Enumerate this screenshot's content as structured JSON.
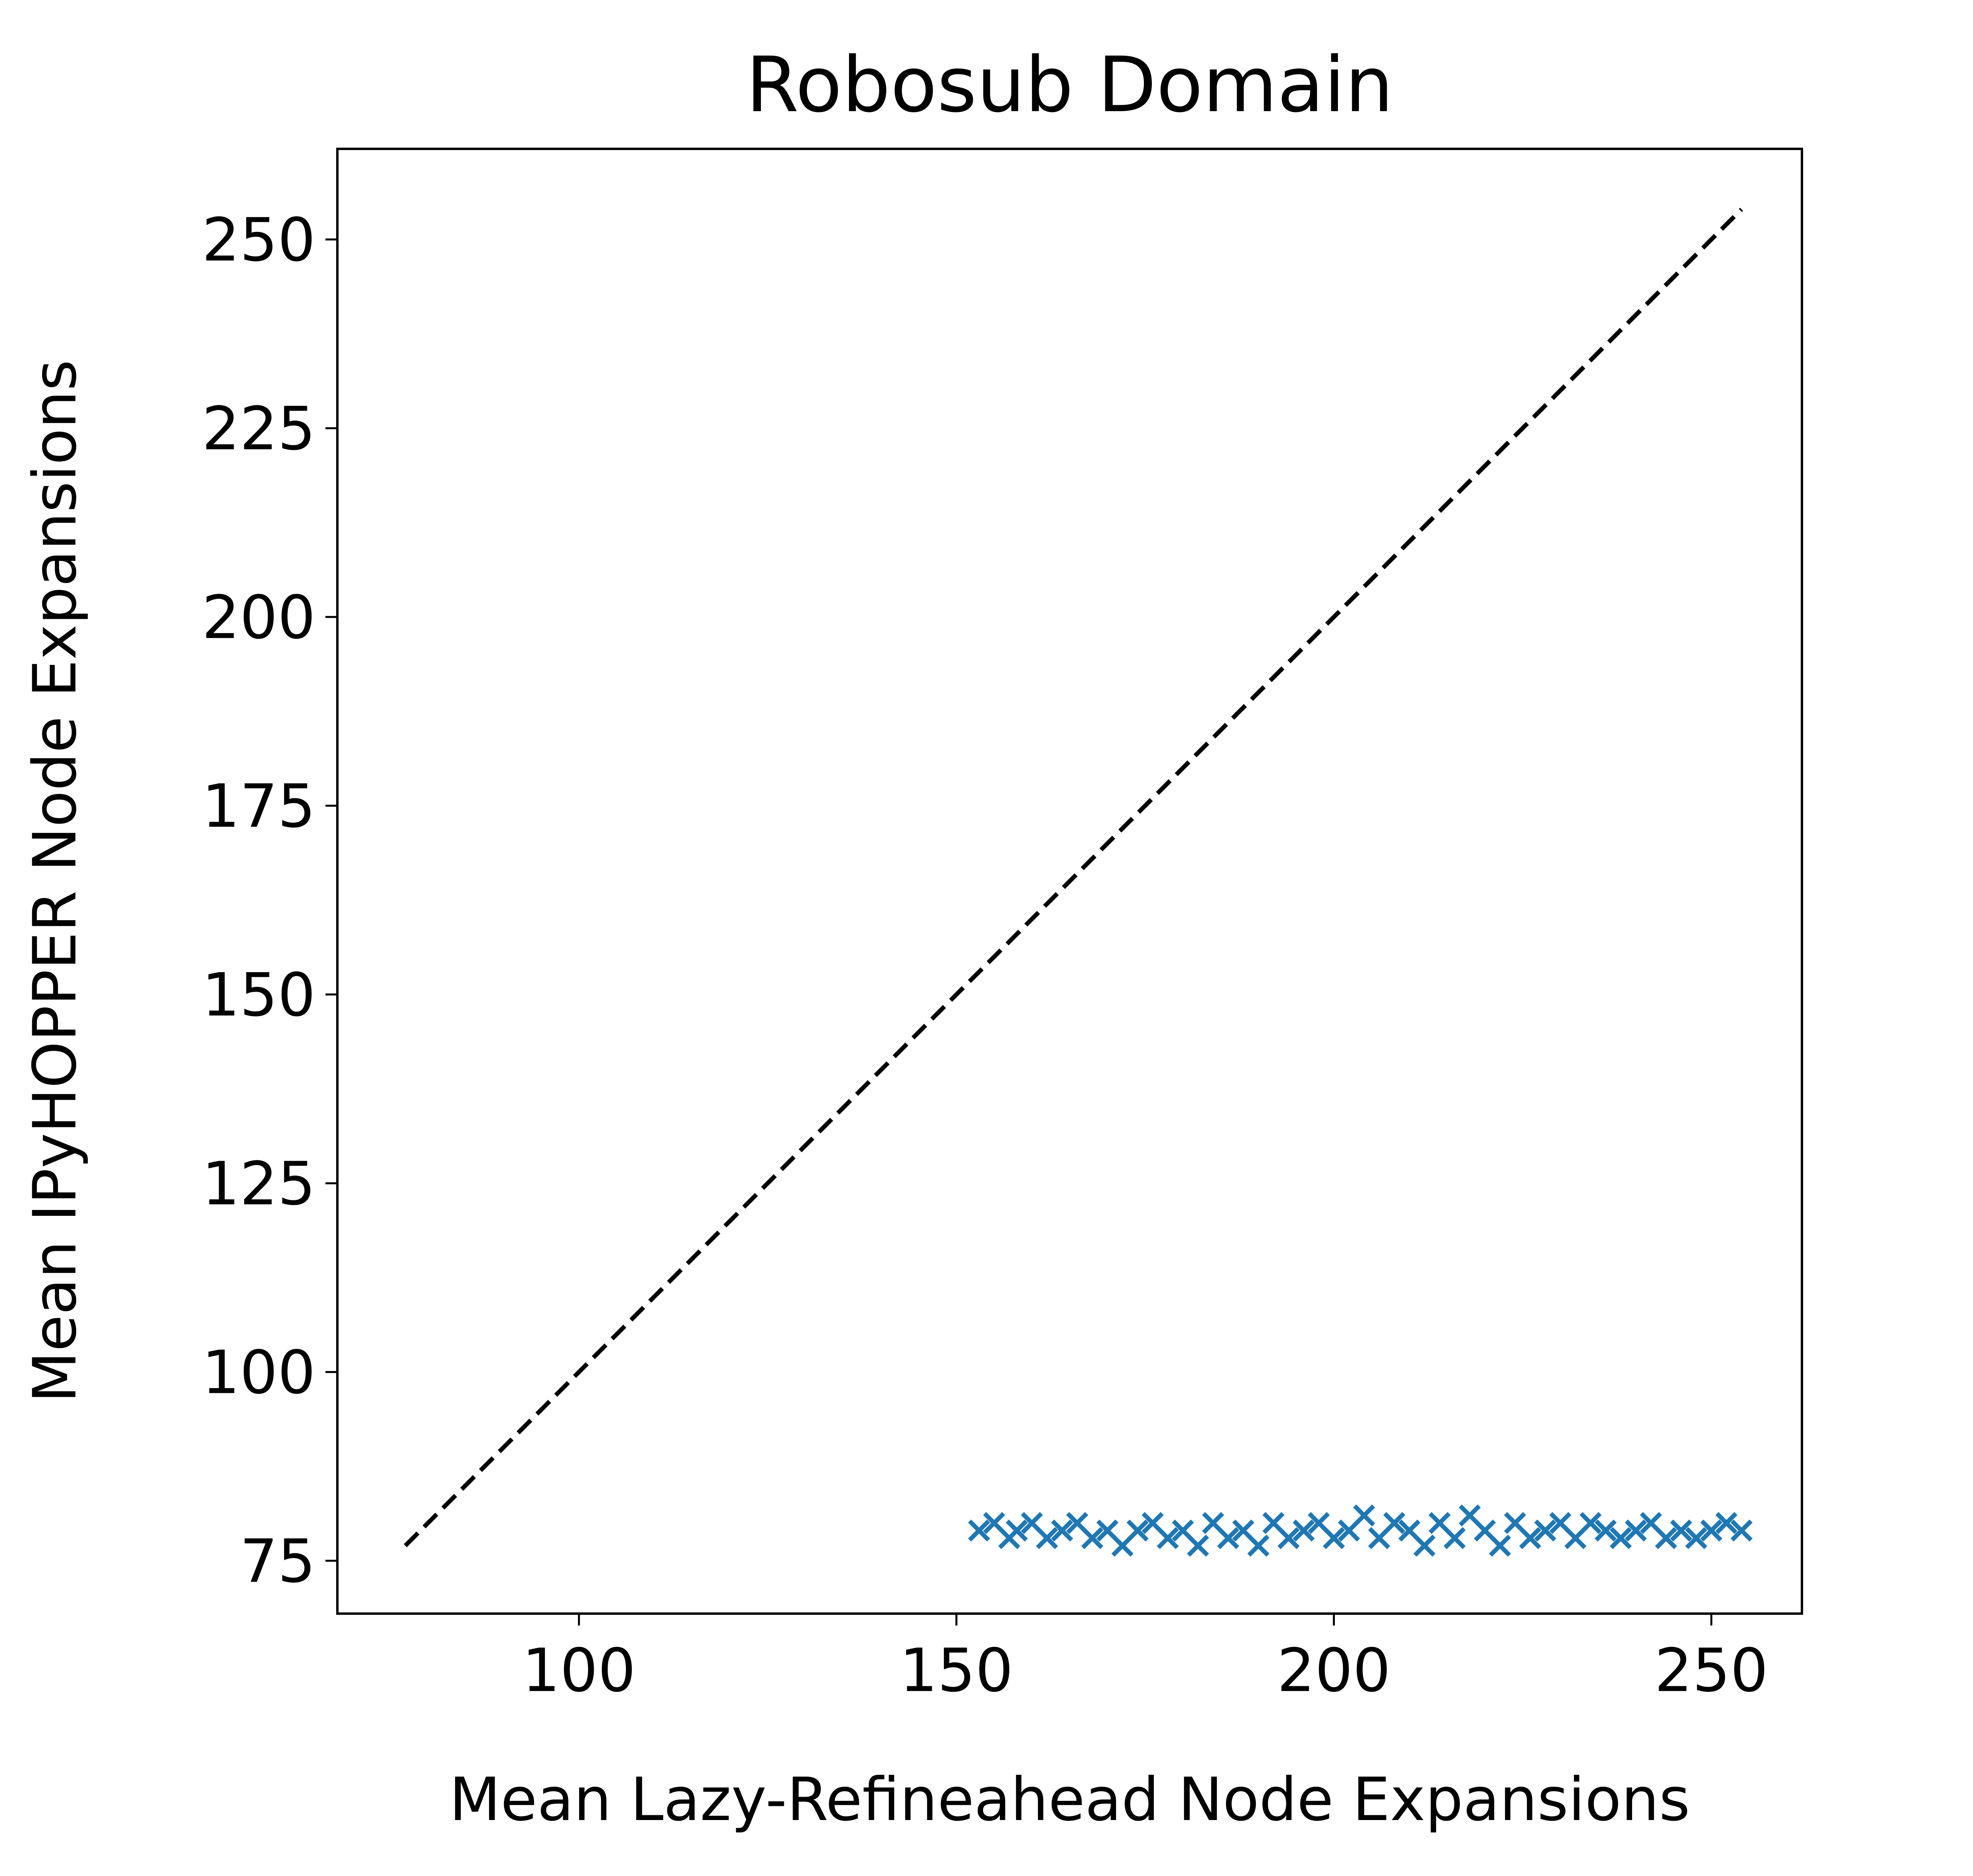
{
  "chart_data": {
    "type": "scatter",
    "title": "Robosub Domain",
    "xlabel": "Mean Lazy-Refineahead Node Expansions",
    "ylabel": "Mean IPyHOPPER Node Expansions",
    "xlim": [
      68,
      262
    ],
    "ylim": [
      68,
      262
    ],
    "xticks": [
      100,
      150,
      200,
      250
    ],
    "yticks": [
      75,
      100,
      125,
      150,
      175,
      200,
      225,
      250
    ],
    "grid": false,
    "marker": "x",
    "marker_color": "#1f77b4",
    "reference_line": {
      "style": "dashed",
      "color": "#000000",
      "x": [
        77,
        254
      ],
      "y": [
        77,
        254
      ]
    },
    "series": [
      {
        "values": [
          [
            153,
            79
          ],
          [
            155,
            80
          ],
          [
            157,
            78
          ],
          [
            158,
            79
          ],
          [
            160,
            80
          ],
          [
            162,
            78
          ],
          [
            164,
            79
          ],
          [
            166,
            80
          ],
          [
            168,
            78
          ],
          [
            170,
            79
          ],
          [
            172,
            77
          ],
          [
            174,
            79
          ],
          [
            176,
            80
          ],
          [
            178,
            78
          ],
          [
            180,
            79
          ],
          [
            182,
            77
          ],
          [
            184,
            80
          ],
          [
            186,
            78
          ],
          [
            188,
            79
          ],
          [
            190,
            77
          ],
          [
            192,
            80
          ],
          [
            194,
            78
          ],
          [
            196,
            79
          ],
          [
            198,
            80
          ],
          [
            200,
            78
          ],
          [
            202,
            79
          ],
          [
            204,
            81
          ],
          [
            206,
            78
          ],
          [
            208,
            80
          ],
          [
            210,
            79
          ],
          [
            212,
            77
          ],
          [
            214,
            80
          ],
          [
            216,
            78
          ],
          [
            218,
            81
          ],
          [
            220,
            79
          ],
          [
            222,
            77
          ],
          [
            224,
            80
          ],
          [
            226,
            78
          ],
          [
            228,
            79
          ],
          [
            230,
            80
          ],
          [
            232,
            78
          ],
          [
            234,
            80
          ],
          [
            236,
            79
          ],
          [
            238,
            78
          ],
          [
            240,
            79
          ],
          [
            242,
            80
          ],
          [
            244,
            78
          ],
          [
            246,
            79
          ],
          [
            248,
            78
          ],
          [
            250,
            79
          ],
          [
            252,
            80
          ],
          [
            254,
            79
          ]
        ]
      }
    ]
  }
}
